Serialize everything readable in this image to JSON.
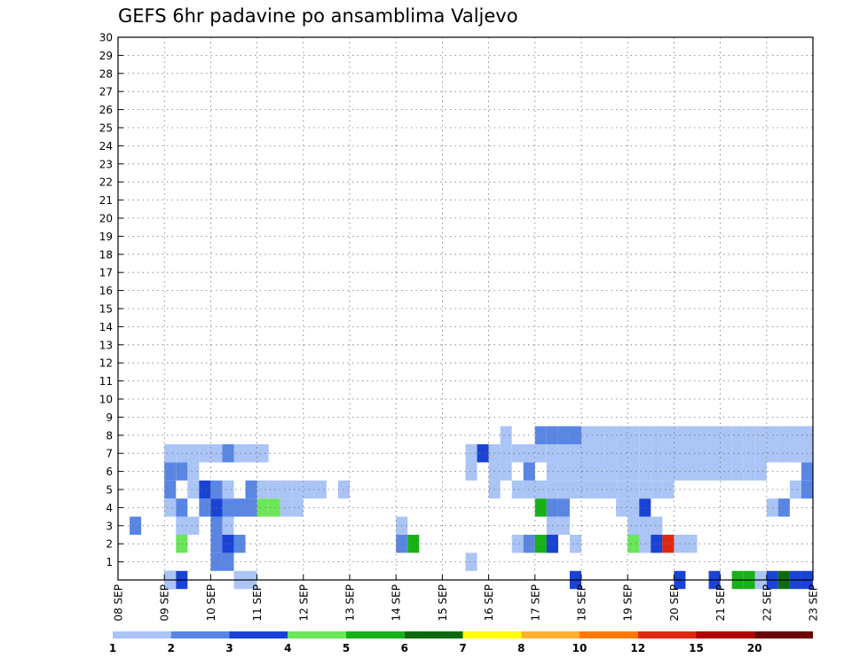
{
  "chart_data": {
    "type": "heatmap",
    "title": "GEFS 6hr padavine po ansamblima Valjevo",
    "xlabel": "",
    "ylabel": "",
    "x_tick_labels": [
      "08 SEP",
      "09 SEP",
      "10 SEP",
      "11 SEP",
      "12 SEP",
      "13 SEP",
      "14 SEP",
      "15 SEP",
      "16 SEP",
      "17 SEP",
      "18 SEP",
      "19 SEP",
      "20 SEP",
      "21 SEP",
      "22 SEP",
      "23 SEP"
    ],
    "x_steps_per_day": 4,
    "x_range_steps": [
      0,
      60
    ],
    "y_tick_labels": [
      "1",
      "2",
      "3",
      "4",
      "5",
      "6",
      "7",
      "8",
      "9",
      "10",
      "11",
      "12",
      "13",
      "14",
      "15",
      "16",
      "17",
      "18",
      "19",
      "20",
      "21",
      "22",
      "23",
      "24",
      "25",
      "26",
      "27",
      "28",
      "29",
      "30"
    ],
    "y_range": [
      0,
      30
    ],
    "grid": true,
    "legend_position": "bottom",
    "legend_labels": [
      "1",
      "2",
      "3",
      "4",
      "5",
      "6",
      "7",
      "8",
      "10",
      "12",
      "15",
      "20"
    ],
    "legend_colors": [
      "#aac4f5",
      "#5a86e3",
      "#1a43d6",
      "#6be65a",
      "#17b117",
      "#0e6a0e",
      "#ffff00",
      "#ffb030",
      "#ff7a00",
      "#e02810",
      "#b20000",
      "#6a0000"
    ],
    "color_levels": [
      "#aac4f5",
      "#5a86e3",
      "#1a43d6",
      "#6be65a",
      "#17b117",
      "#0e6a0e",
      "#ffff00",
      "#ffb030",
      "#ff7a00",
      "#e02810",
      "#b20000",
      "#6a0000"
    ],
    "cells_format": "[x_step, member, color_level]",
    "cells": [
      [
        10,
        0,
        0
      ],
      [
        11,
        0,
        0
      ],
      [
        8,
        1,
        1
      ],
      [
        9,
        1,
        1
      ],
      [
        30,
        1,
        0
      ],
      [
        39,
        0,
        2
      ],
      [
        48,
        0,
        2
      ],
      [
        51,
        0,
        2
      ],
      [
        53,
        0,
        4
      ],
      [
        54,
        0,
        4
      ],
      [
        55,
        0,
        0
      ],
      [
        56,
        0,
        2
      ],
      [
        57,
        0,
        5
      ],
      [
        58,
        0,
        2
      ],
      [
        59,
        0,
        2
      ],
      [
        8,
        2,
        1
      ],
      [
        9,
        2,
        2
      ],
      [
        10,
        2,
        1
      ],
      [
        5,
        2,
        3
      ],
      [
        25,
        2,
        4
      ],
      [
        24,
        2,
        1
      ],
      [
        34,
        2,
        0
      ],
      [
        35,
        2,
        1
      ],
      [
        36,
        2,
        4
      ],
      [
        37,
        2,
        5
      ],
      [
        39,
        2,
        0
      ],
      [
        45,
        2,
        0
      ],
      [
        48,
        2,
        0
      ],
      [
        49,
        2,
        0
      ],
      [
        37,
        2,
        2
      ],
      [
        44,
        2,
        0
      ],
      [
        45,
        2,
        0
      ],
      [
        46,
        2,
        0
      ],
      [
        46,
        2,
        2
      ],
      [
        47,
        2,
        9
      ],
      [
        44,
        2,
        3
      ],
      [
        8,
        3,
        1
      ],
      [
        9,
        3,
        1
      ],
      [
        5,
        3,
        0
      ],
      [
        6,
        3,
        0
      ],
      [
        1,
        3,
        1
      ],
      [
        24,
        3,
        0
      ],
      [
        37,
        3,
        0
      ],
      [
        38,
        3,
        0
      ],
      [
        44,
        3,
        0
      ],
      [
        45,
        3,
        0
      ],
      [
        46,
        3,
        0
      ],
      [
        9,
        3,
        0
      ],
      [
        9,
        3,
        0
      ],
      [
        4,
        4,
        0
      ],
      [
        5,
        4,
        1
      ],
      [
        7,
        4,
        1
      ],
      [
        8,
        4,
        2
      ],
      [
        9,
        4,
        1
      ],
      [
        10,
        4,
        1
      ],
      [
        11,
        4,
        1
      ],
      [
        12,
        4,
        3
      ],
      [
        13,
        4,
        3
      ],
      [
        14,
        4,
        0
      ],
      [
        15,
        4,
        0
      ],
      [
        36,
        4,
        4
      ],
      [
        37,
        4,
        1
      ],
      [
        38,
        4,
        1
      ],
      [
        43,
        4,
        0
      ],
      [
        44,
        4,
        0
      ],
      [
        45,
        4,
        2
      ],
      [
        56,
        4,
        0
      ],
      [
        57,
        4,
        1
      ],
      [
        60,
        4,
        2
      ],
      [
        4,
        5,
        1
      ],
      [
        6,
        5,
        0
      ],
      [
        7,
        5,
        2
      ],
      [
        8,
        5,
        1
      ],
      [
        9,
        5,
        0
      ],
      [
        11,
        5,
        1
      ],
      [
        12,
        5,
        0
      ],
      [
        13,
        5,
        0
      ],
      [
        14,
        5,
        0
      ],
      [
        15,
        5,
        0
      ],
      [
        16,
        5,
        0
      ],
      [
        17,
        5,
        0
      ],
      [
        19,
        5,
        0
      ],
      [
        32,
        5,
        0
      ],
      [
        34,
        5,
        0
      ],
      [
        35,
        5,
        0
      ],
      [
        36,
        5,
        0
      ],
      [
        37,
        5,
        0
      ],
      [
        38,
        5,
        0
      ],
      [
        39,
        5,
        0
      ],
      [
        40,
        5,
        0
      ],
      [
        41,
        5,
        0
      ],
      [
        42,
        5,
        0
      ],
      [
        43,
        5,
        0
      ],
      [
        44,
        5,
        0
      ],
      [
        45,
        5,
        0
      ],
      [
        46,
        5,
        0
      ],
      [
        47,
        5,
        0
      ],
      [
        58,
        5,
        0
      ],
      [
        59,
        5,
        1
      ],
      [
        60,
        5,
        1
      ],
      [
        4,
        6,
        1
      ],
      [
        5,
        6,
        1
      ],
      [
        6,
        6,
        0
      ],
      [
        30,
        6,
        0
      ],
      [
        32,
        6,
        0
      ],
      [
        33,
        6,
        0
      ],
      [
        35,
        6,
        1
      ],
      [
        37,
        6,
        0
      ],
      [
        38,
        6,
        0
      ],
      [
        39,
        6,
        0
      ],
      [
        40,
        6,
        0
      ],
      [
        41,
        6,
        0
      ],
      [
        42,
        6,
        0
      ],
      [
        43,
        6,
        0
      ],
      [
        44,
        6,
        0
      ],
      [
        45,
        6,
        0
      ],
      [
        46,
        6,
        0
      ],
      [
        47,
        6,
        0
      ],
      [
        48,
        6,
        0
      ],
      [
        49,
        6,
        0
      ],
      [
        50,
        6,
        0
      ],
      [
        51,
        6,
        0
      ],
      [
        52,
        6,
        0
      ],
      [
        53,
        6,
        0
      ],
      [
        54,
        6,
        0
      ],
      [
        55,
        6,
        0
      ],
      [
        59,
        6,
        1
      ],
      [
        4,
        7,
        0
      ],
      [
        5,
        7,
        0
      ],
      [
        6,
        7,
        0
      ],
      [
        7,
        7,
        0
      ],
      [
        8,
        7,
        0
      ],
      [
        9,
        7,
        1
      ],
      [
        10,
        7,
        0
      ],
      [
        11,
        7,
        0
      ],
      [
        12,
        7,
        0
      ],
      [
        30,
        7,
        0
      ],
      [
        31,
        7,
        2
      ],
      [
        32,
        7,
        0
      ],
      [
        33,
        7,
        0
      ],
      [
        34,
        7,
        0
      ],
      [
        35,
        7,
        0
      ],
      [
        36,
        7,
        0
      ],
      [
        37,
        7,
        0
      ],
      [
        38,
        7,
        0
      ],
      [
        39,
        7,
        0
      ],
      [
        40,
        7,
        0
      ],
      [
        41,
        7,
        0
      ],
      [
        42,
        7,
        0
      ],
      [
        43,
        7,
        0
      ],
      [
        44,
        7,
        0
      ],
      [
        45,
        7,
        0
      ],
      [
        46,
        7,
        0
      ],
      [
        47,
        7,
        0
      ],
      [
        48,
        7,
        0
      ],
      [
        49,
        7,
        0
      ],
      [
        50,
        7,
        0
      ],
      [
        51,
        7,
        0
      ],
      [
        52,
        7,
        0
      ],
      [
        53,
        7,
        0
      ],
      [
        54,
        7,
        0
      ],
      [
        55,
        7,
        0
      ],
      [
        56,
        7,
        0
      ],
      [
        57,
        7,
        0
      ],
      [
        58,
        7,
        0
      ],
      [
        59,
        7,
        0
      ],
      [
        60,
        7,
        0
      ],
      [
        33,
        8,
        0
      ],
      [
        36,
        8,
        1
      ],
      [
        37,
        8,
        1
      ],
      [
        38,
        8,
        1
      ],
      [
        39,
        8,
        1
      ],
      [
        40,
        8,
        0
      ],
      [
        41,
        8,
        0
      ],
      [
        42,
        8,
        0
      ],
      [
        43,
        8,
        0
      ],
      [
        44,
        8,
        0
      ],
      [
        45,
        8,
        0
      ],
      [
        46,
        8,
        0
      ],
      [
        47,
        8,
        0
      ],
      [
        48,
        8,
        0
      ],
      [
        49,
        8,
        0
      ],
      [
        50,
        8,
        0
      ],
      [
        51,
        8,
        0
      ],
      [
        52,
        8,
        0
      ],
      [
        53,
        8,
        0
      ],
      [
        54,
        8,
        0
      ],
      [
        55,
        8,
        0
      ],
      [
        56,
        8,
        0
      ],
      [
        57,
        8,
        0
      ],
      [
        58,
        8,
        0
      ],
      [
        59,
        8,
        0
      ],
      [
        60,
        8,
        0
      ]
    ],
    "cells_note_extra": [
      [
        4,
        0,
        2
      ],
      [
        5,
        0,
        2
      ],
      [
        4,
        0,
        0
      ]
    ]
  }
}
